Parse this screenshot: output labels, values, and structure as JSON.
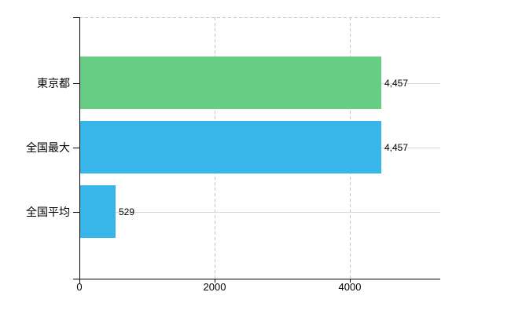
{
  "chart_data": {
    "type": "bar",
    "orientation": "horizontal",
    "title": "",
    "categories": [
      "東京都",
      "全国最大",
      "全国平均"
    ],
    "values": [
      4457,
      4457,
      529
    ],
    "value_labels": [
      "4,457",
      "4,457",
      "529"
    ],
    "bar_colors": [
      "#68cd84",
      "#38b6ea",
      "#38b6ea"
    ],
    "x_ticks": [
      {
        "value": 0,
        "label": "0"
      },
      {
        "value": 2000,
        "label": "2000"
      },
      {
        "value": 4000,
        "label": "4000"
      }
    ],
    "xlim": [
      0,
      5340
    ],
    "legend": "none",
    "grid": {
      "vertical_lines": "dashed",
      "row_lines": "solid"
    },
    "colors": {
      "axis": "#000000",
      "grid_vertical": "#c6c6c6",
      "grid_row": "#d9d9d9",
      "text": "#000000",
      "background": "#ffffff"
    }
  }
}
